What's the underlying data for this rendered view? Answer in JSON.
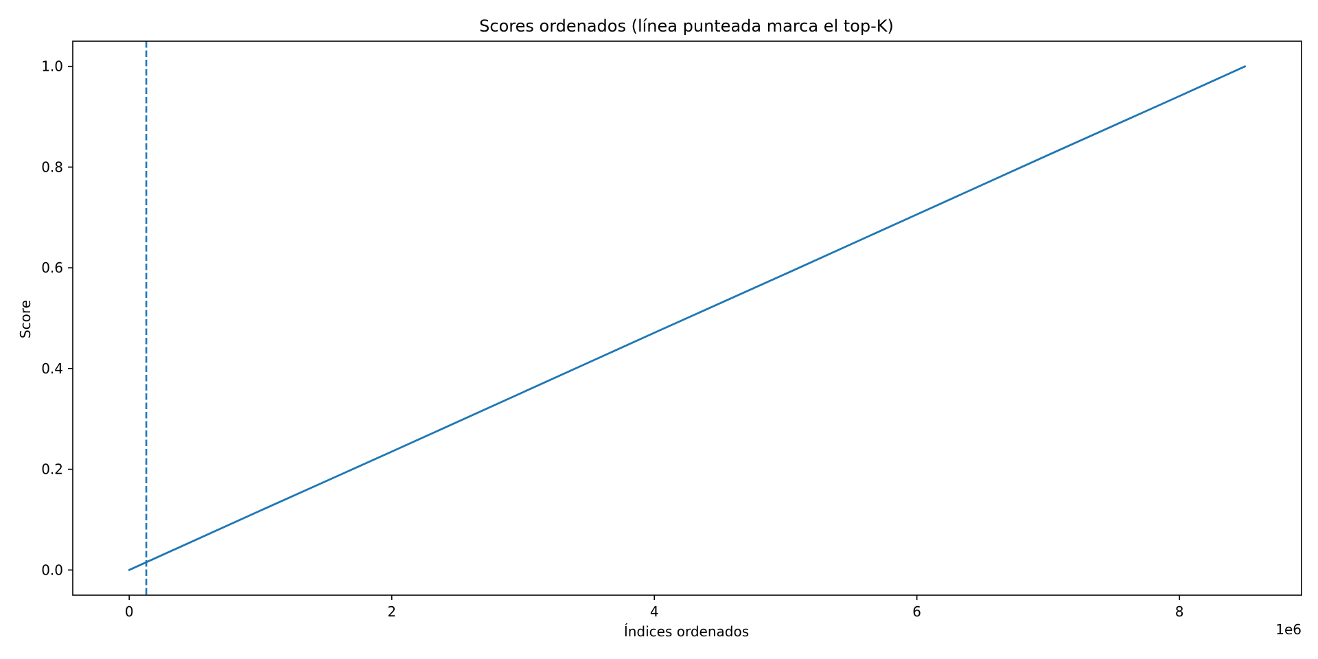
{
  "chart_data": {
    "type": "line",
    "title": "Scores ordenados (línea punteada marca el top-K)",
    "xlabel": "Índices ordenados",
    "ylabel": "Score",
    "x_offset_text": "1e6",
    "xlim": [
      -430000,
      8930000
    ],
    "ylim": [
      -0.05,
      1.05
    ],
    "xticks": [
      0,
      2000000,
      4000000,
      6000000,
      8000000
    ],
    "xtick_labels": [
      "0",
      "2",
      "4",
      "6",
      "8"
    ],
    "yticks": [
      0.0,
      0.2,
      0.4,
      0.6,
      0.8,
      1.0
    ],
    "ytick_labels": [
      "0.0",
      "0.2",
      "0.4",
      "0.6",
      "0.8",
      "1.0"
    ],
    "grid": false,
    "series": [
      {
        "color": "#1f77b4",
        "x": [
          0,
          1000000,
          2000000,
          3000000,
          4000000,
          5000000,
          6000000,
          7000000,
          8000000,
          8500000
        ],
        "y": [
          0.0,
          0.118,
          0.235,
          0.353,
          0.471,
          0.588,
          0.706,
          0.824,
          0.941,
          1.0
        ]
      }
    ],
    "vlines": [
      {
        "x": 130000,
        "style": "dashed",
        "color": "#1f77b4"
      }
    ]
  }
}
